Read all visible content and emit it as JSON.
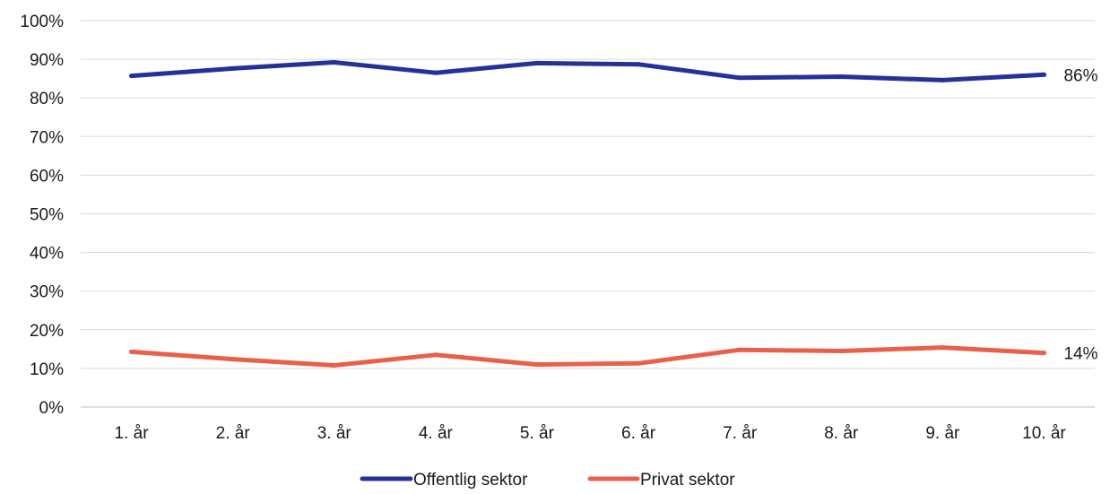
{
  "chart_data": {
    "type": "line",
    "categories": [
      "1. år",
      "2. år",
      "3. år",
      "4. år",
      "5. år",
      "6. år",
      "7. år",
      "8. år",
      "9. år",
      "10. år"
    ],
    "ylim": [
      0,
      100
    ],
    "yticks": [
      0,
      10,
      20,
      30,
      40,
      50,
      60,
      70,
      80,
      90,
      100
    ],
    "ytick_labels": [
      "0%",
      "10%",
      "20%",
      "30%",
      "40%",
      "50%",
      "60%",
      "70%",
      "80%",
      "90%",
      "100%"
    ],
    "grid": true,
    "legend_position": "bottom",
    "series": [
      {
        "name": "Offentlig sektor",
        "color": "#25319a",
        "values": [
          85.7,
          87.6,
          89.2,
          86.5,
          89.0,
          88.7,
          85.2,
          85.5,
          84.6,
          86.0
        ],
        "end_label": "86%"
      },
      {
        "name": "Privat sektor",
        "color": "#e8604c",
        "values": [
          14.3,
          12.4,
          10.8,
          13.5,
          11.0,
          11.3,
          14.8,
          14.5,
          15.4,
          14.0
        ],
        "end_label": "14%"
      }
    ]
  }
}
